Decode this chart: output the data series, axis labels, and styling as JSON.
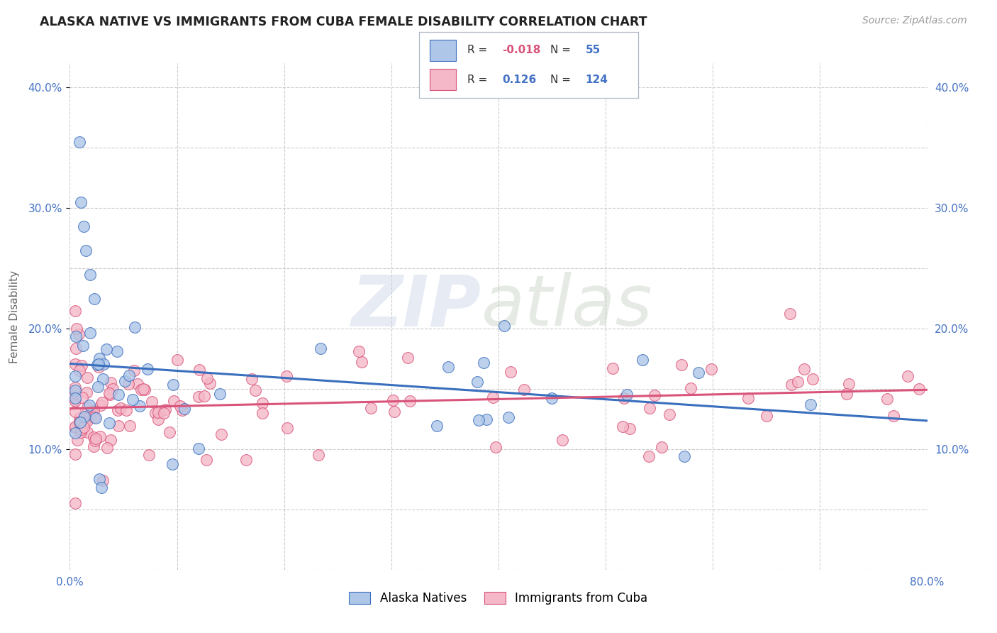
{
  "title": "ALASKA NATIVE VS IMMIGRANTS FROM CUBA FEMALE DISABILITY CORRELATION CHART",
  "source": "Source: ZipAtlas.com",
  "ylabel": "Female Disability",
  "xlim": [
    0.0,
    0.8
  ],
  "ylim": [
    0.0,
    0.42
  ],
  "color_blue": "#aec6e8",
  "color_pink": "#f4b8c8",
  "line_blue": "#3a6fbe",
  "line_pink": "#d9547a",
  "background": "#ffffff",
  "grid_color": "#cccccc",
  "tick_color": "#4472c4",
  "legend_r1_label": "R = ",
  "legend_r1_val": "-0.018",
  "legend_n1_label": "N = ",
  "legend_n1_val": "55",
  "legend_r2_label": "R =  ",
  "legend_r2_val": "0.126",
  "legend_n2_label": "N = ",
  "legend_n2_val": "124"
}
